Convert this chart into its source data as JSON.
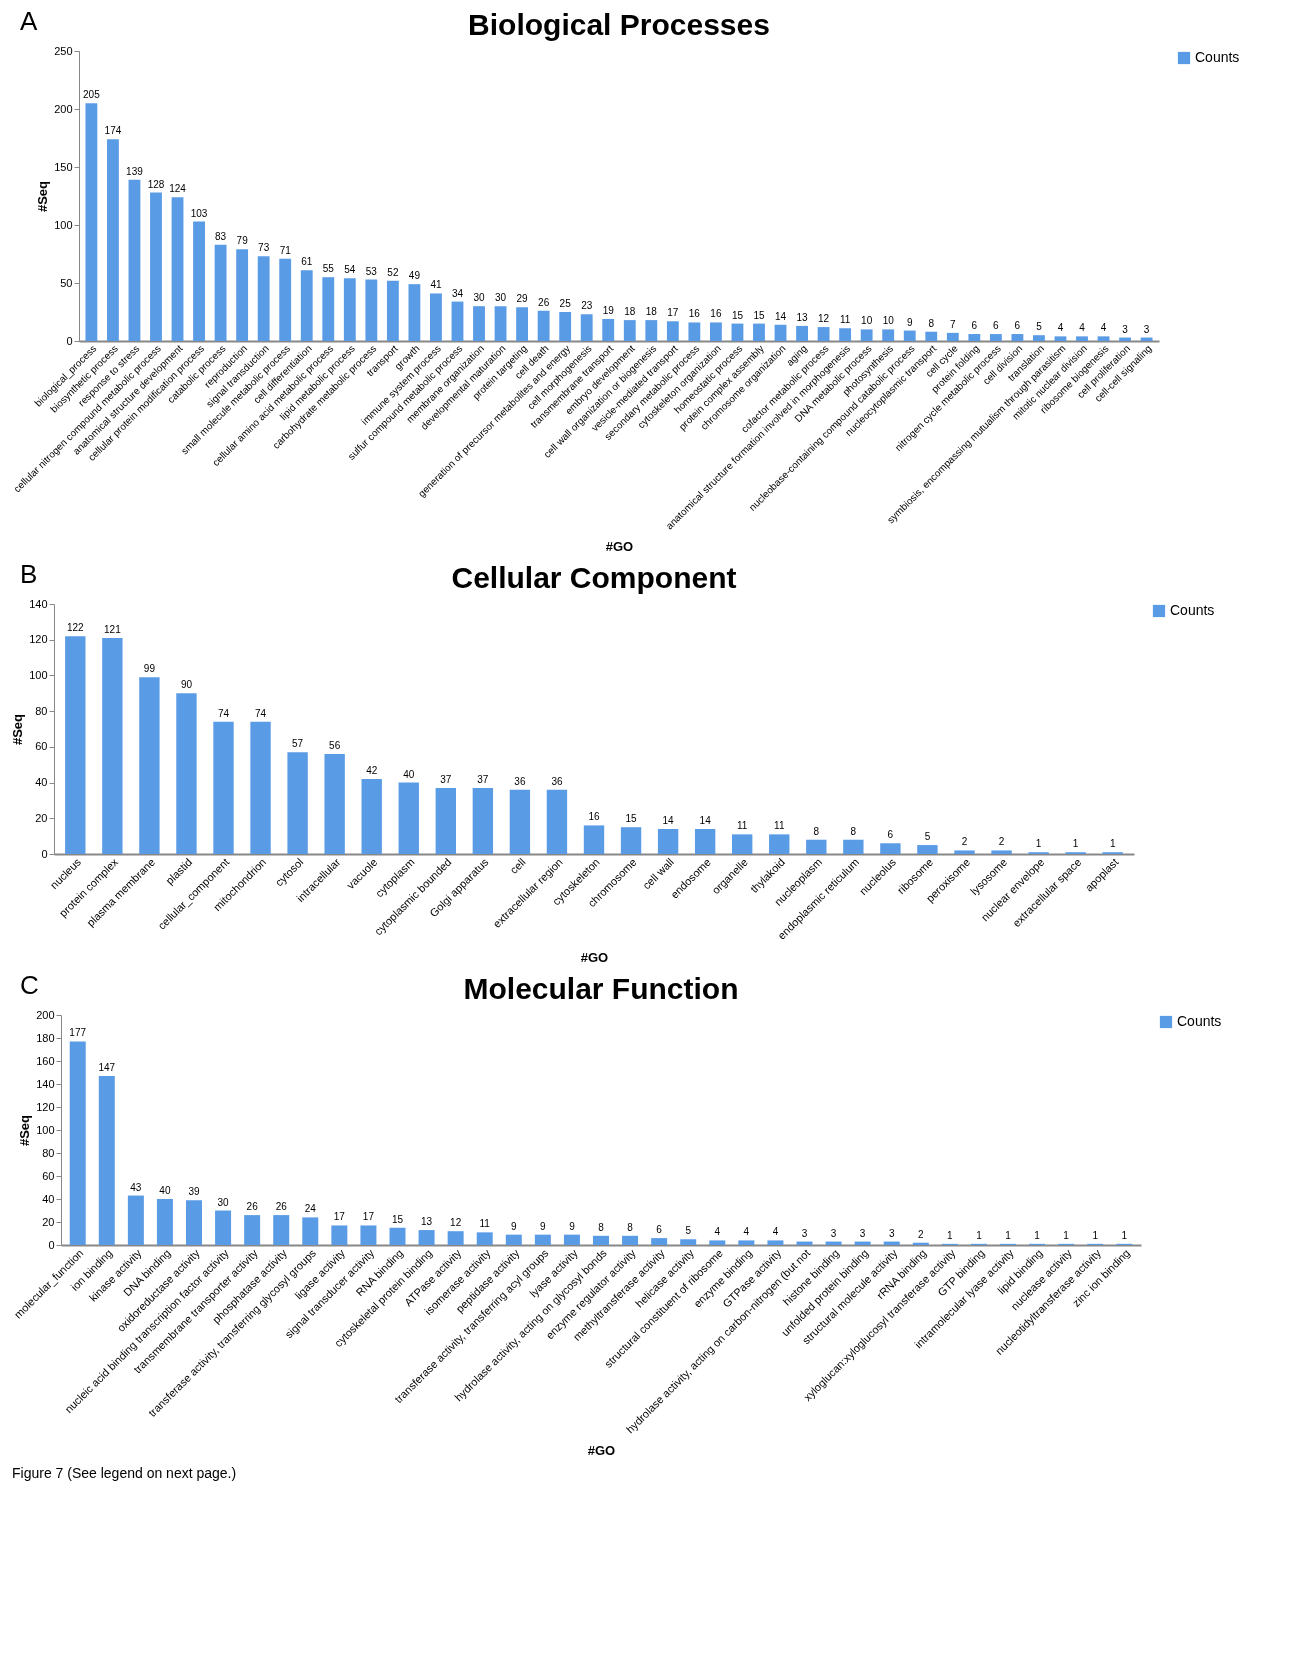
{
  "chart_data": [
    {
      "type": "bar",
      "title": "Biological Processes",
      "xlabel": "#GO",
      "ylabel": "#Seq",
      "annotations": [
        "A"
      ],
      "categories": [
        "biological_process",
        "biosynthetic process",
        "response to stress",
        "cellular nitrogen compound metabolic process",
        "anatomical structure development",
        "cellular protein modification process",
        "catabolic process",
        "reproduction",
        "signal transduction",
        "small molecule metabolic process",
        "cell differentiation",
        "cellular amino acid metabolic process",
        "lipid metabolic process",
        "carbohydrate metabolic process",
        "transport",
        "growth",
        "immune system process",
        "sulfur compound metabolic process",
        "membrane organization",
        "developmental maturation",
        "protein targeting",
        "cell death",
        "generation of precursor metabolites and energy",
        "cell morphogenesis",
        "transmembrane transport",
        "embryo development",
        "cell wall organization or biogenesis",
        "vesicle-mediated transport",
        "secondary metabolic process",
        "cytoskeleton organization",
        "homeostatic process",
        "protein complex assembly",
        "chromosome organization",
        "aging",
        "cofactor metabolic process",
        "anatomical structure formation involved in morphogenesis",
        "DNA metabolic process",
        "photosynthesis",
        "nucleobase-containing compound catabolic process",
        "nucleocytoplasmic transport",
        "cell cycle",
        "protein folding",
        "nitrogen cycle metabolic process",
        "cell division",
        "translation",
        "symbiosis, encompassing mutualism through parasitism",
        "mitotic nuclear division",
        "ribosome biogenesis",
        "cell proliferation",
        "cell-cell signaling"
      ],
      "series": [
        {
          "name": "Counts",
          "color": "#5a9be6",
          "values": [
            205,
            174,
            139,
            128,
            124,
            103,
            83,
            79,
            73,
            71,
            61,
            55,
            54,
            53,
            52,
            49,
            41,
            34,
            30,
            30,
            29,
            26,
            25,
            23,
            19,
            18,
            18,
            17,
            16,
            16,
            15,
            15,
            14,
            13,
            12,
            11,
            10,
            10,
            9,
            8,
            7,
            6,
            6,
            6,
            5,
            4,
            4,
            4,
            3,
            3
          ]
        }
      ],
      "ylim": [
        0,
        250
      ],
      "yticks": [
        0,
        50,
        100,
        150,
        200,
        250
      ],
      "data_labels": true,
      "legend": "right",
      "grid": false
    },
    {
      "type": "bar",
      "title": "Cellular Component",
      "xlabel": "#GO",
      "ylabel": "#Seq",
      "annotations": [
        "B"
      ],
      "categories": [
        "nucleus",
        "protein complex",
        "plasma membrane",
        "plastid",
        "cellular_component",
        "mitochondrion",
        "cytosol",
        "intracellular",
        "vacuole",
        "cytoplasm",
        "cytoplasmic bounded",
        "Golgi apparatus",
        "cell",
        "extracellular region",
        "cytoskeleton",
        "chromosome",
        "cell wall",
        "endosome",
        "organelle",
        "thylakoid",
        "nucleoplasm",
        "endoplasmic reticulum",
        "nucleolus",
        "ribosome",
        "peroxisome",
        "lysosome",
        "nuclear envelope",
        "extracellular space",
        "apoplast"
      ],
      "series": [
        {
          "name": "Counts",
          "color": "#5a9be6",
          "values": [
            122,
            121,
            99,
            90,
            74,
            74,
            57,
            56,
            42,
            40,
            37,
            37,
            36,
            36,
            16,
            15,
            14,
            14,
            11,
            11,
            8,
            8,
            6,
            5,
            2,
            2,
            1,
            1,
            1
          ]
        }
      ],
      "ylim": [
        0,
        140
      ],
      "yticks": [
        0,
        20,
        40,
        60,
        80,
        100,
        120,
        140
      ],
      "data_labels": true,
      "legend": "right",
      "grid": false
    },
    {
      "type": "bar",
      "title": "Molecular Function",
      "xlabel": "#GO",
      "ylabel": "#Seq",
      "annotations": [
        "C",
        "Figure 7 (See legend on next page.)"
      ],
      "categories": [
        "molecular_function",
        "ion binding",
        "kinase activity",
        "DNA binding",
        "oxidoreductase activity",
        "nucleic acid binding transcription factor activity",
        "transmembrane transporter activity",
        "phosphatase activity",
        "transferase activity, transferring glycosyl groups",
        "ligase activity",
        "signal transducer activity",
        "RNA binding",
        "cytoskeletal protein binding",
        "ATPase activity",
        "isomerase activity",
        "peptidase activity",
        "transferase activity, transferring acyl groups",
        "lyase activity",
        "hydrolase activity, acting on glycosyl bonds",
        "enzyme regulator activity",
        "methyltransferase activity",
        "helicase activity",
        "structural constituent of ribosome",
        "enzyme binding",
        "GTPase activity",
        "hydrolase activity, acting on carbon-nitrogen (but not",
        "histone binding",
        "unfolded protein binding",
        "structural molecule activity",
        "rRNA binding",
        "xyloglucan:xyloglucosyl transferase activity",
        "GTP binding",
        "intramolecular lyase activity",
        "lipid binding",
        "nuclease activity",
        "nucleotidyltransferase activity",
        "zinc ion binding"
      ],
      "series": [
        {
          "name": "Counts",
          "color": "#5a9be6",
          "values": [
            177,
            147,
            43,
            40,
            39,
            30,
            26,
            26,
            24,
            17,
            17,
            15,
            13,
            12,
            11,
            9,
            9,
            9,
            8,
            8,
            6,
            5,
            4,
            4,
            4,
            3,
            3,
            3,
            3,
            2,
            1,
            1,
            1,
            1,
            1,
            1,
            1
          ]
        }
      ],
      "ylim": [
        0,
        200
      ],
      "yticks": [
        0,
        20,
        40,
        60,
        80,
        100,
        120,
        140,
        160,
        180,
        200
      ],
      "data_labels": true,
      "legend": "right",
      "grid": false
    }
  ]
}
